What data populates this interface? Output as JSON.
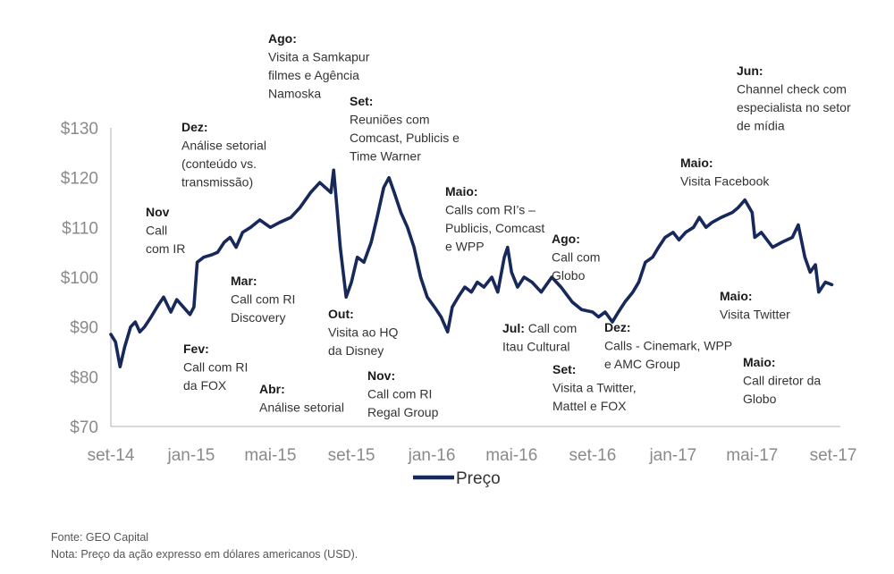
{
  "chart_data": {
    "type": "line",
    "title": "",
    "xlabel": "",
    "ylabel": "",
    "ylim": [
      70,
      130
    ],
    "y_ticks": [
      70,
      80,
      90,
      100,
      110,
      120,
      130
    ],
    "y_tick_labels": [
      "$70",
      "$80",
      "$90",
      "$100",
      "$110",
      "$120",
      "$130"
    ],
    "x_ticks": [
      "2014-09-01",
      "2015-01-01",
      "2015-05-01",
      "2015-09-01",
      "2016-01-01",
      "2016-05-01",
      "2016-09-01",
      "2017-01-01",
      "2017-05-01",
      "2017-09-01"
    ],
    "x_tick_labels": [
      "set-14",
      "jan-15",
      "mai-15",
      "set-15",
      "jan-16",
      "mai-16",
      "set-16",
      "jan-17",
      "mai-17",
      "set-17"
    ],
    "xlim": [
      "2014-09-01",
      "2017-09-01"
    ],
    "grid": false,
    "legend": "bottom-center",
    "series": [
      {
        "name": "Preço",
        "color": "#17285a",
        "points": [
          [
            "2014-09-01",
            88.5
          ],
          [
            "2014-09-08",
            87.0
          ],
          [
            "2014-09-15",
            82.0
          ],
          [
            "2014-09-22",
            86.0
          ],
          [
            "2014-10-01",
            90.0
          ],
          [
            "2014-10-08",
            91.0
          ],
          [
            "2014-10-15",
            89.0
          ],
          [
            "2014-10-22",
            90.0
          ],
          [
            "2014-11-01",
            92.0
          ],
          [
            "2014-11-10",
            94.0
          ],
          [
            "2014-11-20",
            96.0
          ],
          [
            "2014-12-01",
            93.0
          ],
          [
            "2014-12-10",
            95.5
          ],
          [
            "2014-12-20",
            94.0
          ],
          [
            "2014-12-30",
            92.5
          ],
          [
            "2015-01-05",
            94.0
          ],
          [
            "2015-01-10",
            103.0
          ],
          [
            "2015-01-20",
            104.0
          ],
          [
            "2015-02-01",
            104.5
          ],
          [
            "2015-02-10",
            105.0
          ],
          [
            "2015-02-20",
            107.0
          ],
          [
            "2015-03-01",
            108.0
          ],
          [
            "2015-03-10",
            106.0
          ],
          [
            "2015-03-20",
            109.0
          ],
          [
            "2015-04-01",
            110.0
          ],
          [
            "2015-04-15",
            111.5
          ],
          [
            "2015-05-01",
            110.0
          ],
          [
            "2015-05-15",
            111.0
          ],
          [
            "2015-06-01",
            112.0
          ],
          [
            "2015-06-15",
            114.0
          ],
          [
            "2015-07-01",
            117.0
          ],
          [
            "2015-07-15",
            119.0
          ],
          [
            "2015-08-01",
            117.0
          ],
          [
            "2015-08-05",
            121.5
          ],
          [
            "2015-08-10",
            114.0
          ],
          [
            "2015-08-15",
            106.0
          ],
          [
            "2015-08-24",
            96.0
          ],
          [
            "2015-09-01",
            99.0
          ],
          [
            "2015-09-10",
            104.0
          ],
          [
            "2015-09-20",
            103.0
          ],
          [
            "2015-10-01",
            107.0
          ],
          [
            "2015-10-10",
            112.0
          ],
          [
            "2015-10-20",
            118.0
          ],
          [
            "2015-10-28",
            120.0
          ],
          [
            "2015-11-05",
            117.0
          ],
          [
            "2015-11-15",
            113.0
          ],
          [
            "2015-11-25",
            110.0
          ],
          [
            "2015-12-05",
            106.0
          ],
          [
            "2015-12-15",
            100.0
          ],
          [
            "2015-12-25",
            96.0
          ],
          [
            "2016-01-05",
            94.0
          ],
          [
            "2016-01-15",
            92.0
          ],
          [
            "2016-01-25",
            89.0
          ],
          [
            "2016-02-01",
            94.0
          ],
          [
            "2016-02-10",
            96.0
          ],
          [
            "2016-02-20",
            98.0
          ],
          [
            "2016-03-01",
            97.0
          ],
          [
            "2016-03-10",
            99.0
          ],
          [
            "2016-03-20",
            98.0
          ],
          [
            "2016-04-01",
            100.0
          ],
          [
            "2016-04-10",
            97.0
          ],
          [
            "2016-04-20",
            104.0
          ],
          [
            "2016-04-25",
            106.0
          ],
          [
            "2016-05-01",
            101.0
          ],
          [
            "2016-05-10",
            98.0
          ],
          [
            "2016-05-20",
            100.0
          ],
          [
            "2016-06-01",
            99.0
          ],
          [
            "2016-06-15",
            97.0
          ],
          [
            "2016-07-01",
            100.0
          ],
          [
            "2016-07-15",
            98.0
          ],
          [
            "2016-08-01",
            95.0
          ],
          [
            "2016-08-15",
            93.5
          ],
          [
            "2016-09-01",
            93.0
          ],
          [
            "2016-09-10",
            92.0
          ],
          [
            "2016-09-20",
            93.0
          ],
          [
            "2016-10-01",
            91.0
          ],
          [
            "2016-10-10",
            93.0
          ],
          [
            "2016-10-20",
            95.0
          ],
          [
            "2016-11-01",
            97.0
          ],
          [
            "2016-11-10",
            99.0
          ],
          [
            "2016-11-20",
            103.0
          ],
          [
            "2016-12-01",
            104.0
          ],
          [
            "2016-12-10",
            106.0
          ],
          [
            "2016-12-20",
            108.0
          ],
          [
            "2017-01-01",
            109.0
          ],
          [
            "2017-01-10",
            107.5
          ],
          [
            "2017-01-20",
            109.0
          ],
          [
            "2017-02-01",
            110.0
          ],
          [
            "2017-02-10",
            112.0
          ],
          [
            "2017-02-20",
            110.0
          ],
          [
            "2017-03-01",
            111.0
          ],
          [
            "2017-03-15",
            112.0
          ],
          [
            "2017-04-01",
            113.0
          ],
          [
            "2017-04-10",
            114.0
          ],
          [
            "2017-04-20",
            115.5
          ],
          [
            "2017-05-01",
            113.0
          ],
          [
            "2017-05-05",
            108.0
          ],
          [
            "2017-05-15",
            109.0
          ],
          [
            "2017-06-01",
            106.0
          ],
          [
            "2017-06-15",
            107.0
          ],
          [
            "2017-07-01",
            108.0
          ],
          [
            "2017-07-10",
            110.5
          ],
          [
            "2017-07-20",
            104.0
          ],
          [
            "2017-07-28",
            101.0
          ],
          [
            "2017-08-05",
            102.5
          ],
          [
            "2017-08-10",
            97.0
          ],
          [
            "2017-08-20",
            99.0
          ],
          [
            "2017-08-30",
            98.5
          ]
        ]
      }
    ],
    "annotations": [
      {
        "head": "Nov",
        "lines": [
          "Call",
          "com IR"
        ]
      },
      {
        "head": "Dez:",
        "lines": [
          "Análise setorial",
          "(conteúdo vs.",
          "transmissão)"
        ]
      },
      {
        "head": "Ago:",
        "lines": [
          "Visita a Samkapur",
          "filmes e Agência",
          "Namoska"
        ]
      },
      {
        "head": "Set:",
        "lines": [
          "Reuniões com",
          "Comcast, Publicis e",
          "Time Warner"
        ]
      },
      {
        "head": "Maio:",
        "lines": [
          "Calls com RI’s –",
          "Publicis, Comcast",
          "e WPP"
        ]
      },
      {
        "head": "Ago:",
        "lines": [
          "Call com",
          "Globo"
        ]
      },
      {
        "head": "Maio:",
        "lines": [
          "Visita Facebook"
        ]
      },
      {
        "head": "Jun:",
        "lines": [
          "Channel check com",
          "especialista no setor",
          "de mídia"
        ]
      },
      {
        "head": "Mar:",
        "lines": [
          "Call com RI",
          "Discovery"
        ]
      },
      {
        "head": "Out:",
        "lines": [
          "Visita ao HQ",
          "da Disney"
        ]
      },
      {
        "head": "Jul:",
        "inline": "Call com",
        "lines": [
          "Itau Cultural"
        ]
      },
      {
        "head": "Dez:",
        "lines": [
          "Calls - Cinemark, WPP",
          "e AMC Group"
        ]
      },
      {
        "head": "Maio:",
        "lines": [
          "Visita Twitter"
        ]
      },
      {
        "head": "Fev:",
        "lines": [
          "Call com RI",
          "da FOX"
        ]
      },
      {
        "head": "Abr:",
        "lines": [
          "Análise setorial"
        ]
      },
      {
        "head": "Nov:",
        "lines": [
          "Call com RI",
          "Regal Group"
        ]
      },
      {
        "head": "Set:",
        "lines": [
          "Visita a Twitter,",
          "Mattel e FOX"
        ]
      },
      {
        "head": "Maio:",
        "lines": [
          "Call diretor da",
          "Globo"
        ]
      }
    ]
  },
  "footer": {
    "source": "Fonte: GEO Capital",
    "note": "Nota: Preço da ação expresso em dólares americanos (USD)."
  }
}
